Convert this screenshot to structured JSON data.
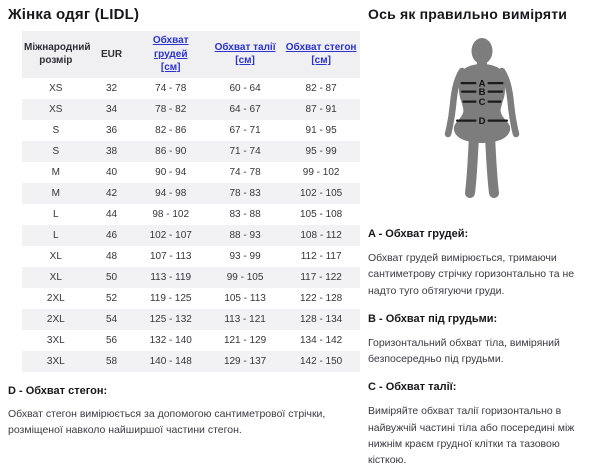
{
  "left": {
    "title": "Жінка одяг (LIDL)",
    "table": {
      "headers": [
        {
          "label": "Міжнародний",
          "unit": "розмір",
          "link": false
        },
        {
          "label": "EUR",
          "unit": "",
          "link": false
        },
        {
          "label": "Обхват грудей",
          "unit": "[см]",
          "link": true
        },
        {
          "label": "Обхват талії",
          "unit": "[см]",
          "link": true
        },
        {
          "label": "Обхват стегон",
          "unit": "[см]",
          "link": true
        }
      ],
      "rows": [
        [
          "XS",
          "32",
          "74 - 78",
          "60 - 64",
          "82 - 87"
        ],
        [
          "XS",
          "34",
          "78 - 82",
          "64 - 67",
          "87 - 91"
        ],
        [
          "S",
          "36",
          "82 - 86",
          "67 - 71",
          "91 - 95"
        ],
        [
          "S",
          "38",
          "86 - 90",
          "71 - 74",
          "95 - 99"
        ],
        [
          "M",
          "40",
          "90 - 94",
          "74 - 78",
          "99 - 102"
        ],
        [
          "M",
          "42",
          "94 - 98",
          "78 - 83",
          "102 - 105"
        ],
        [
          "L",
          "44",
          "98 - 102",
          "83 - 88",
          "105 - 108"
        ],
        [
          "L",
          "46",
          "102 - 107",
          "88 - 93",
          "108 - 112"
        ],
        [
          "XL",
          "48",
          "107 - 113",
          "93 - 99",
          "112 - 117"
        ],
        [
          "XL",
          "50",
          "113 - 119",
          "99 - 105",
          "117 - 122"
        ],
        [
          "2XL",
          "52",
          "119 - 125",
          "105 - 113",
          "122 - 128"
        ],
        [
          "2XL",
          "54",
          "125 - 132",
          "113 - 121",
          "128 - 134"
        ],
        [
          "3XL",
          "56",
          "132 - 140",
          "121 - 129",
          "134 - 142"
        ],
        [
          "3XL",
          "58",
          "140 - 148",
          "129 - 137",
          "142 - 150"
        ]
      ]
    },
    "note_d": {
      "heading": "D - Обхват стегон:",
      "body": "Обхват стегон вимірюється за допомогою сантиметрової стрічки, розміщеної навколо найширшої частини стегон."
    }
  },
  "right": {
    "title": "Ось як правильно виміряти",
    "figure_labels": {
      "a": "A",
      "b": "B",
      "c": "C",
      "d": "D"
    },
    "sections": [
      {
        "heading": "A - Обхват грудей:",
        "body": "Обхват грудей вимірюється, тримаючи сантиметрову стрічку горизонтально та не надто туго обтягуючи груди."
      },
      {
        "heading": "B - Обхват під грудьми:",
        "body": "Горизонтальний обхват тіла, виміряний безпосередньо під грудьми."
      },
      {
        "heading": "C - Обхват талії:",
        "body": "Виміряйте обхват талії горизонтально в найвужчій частині тіла або посередині між нижнім краєм грудної клітки та тазовою кісткою."
      }
    ]
  },
  "colors": {
    "link_blue": "#2b32cf",
    "header_bg": "#f0f0f2",
    "stripe_bg": "#f2f2f4",
    "silhouette_gray": "#7d7d7d",
    "band_black": "#1b1b1b"
  }
}
